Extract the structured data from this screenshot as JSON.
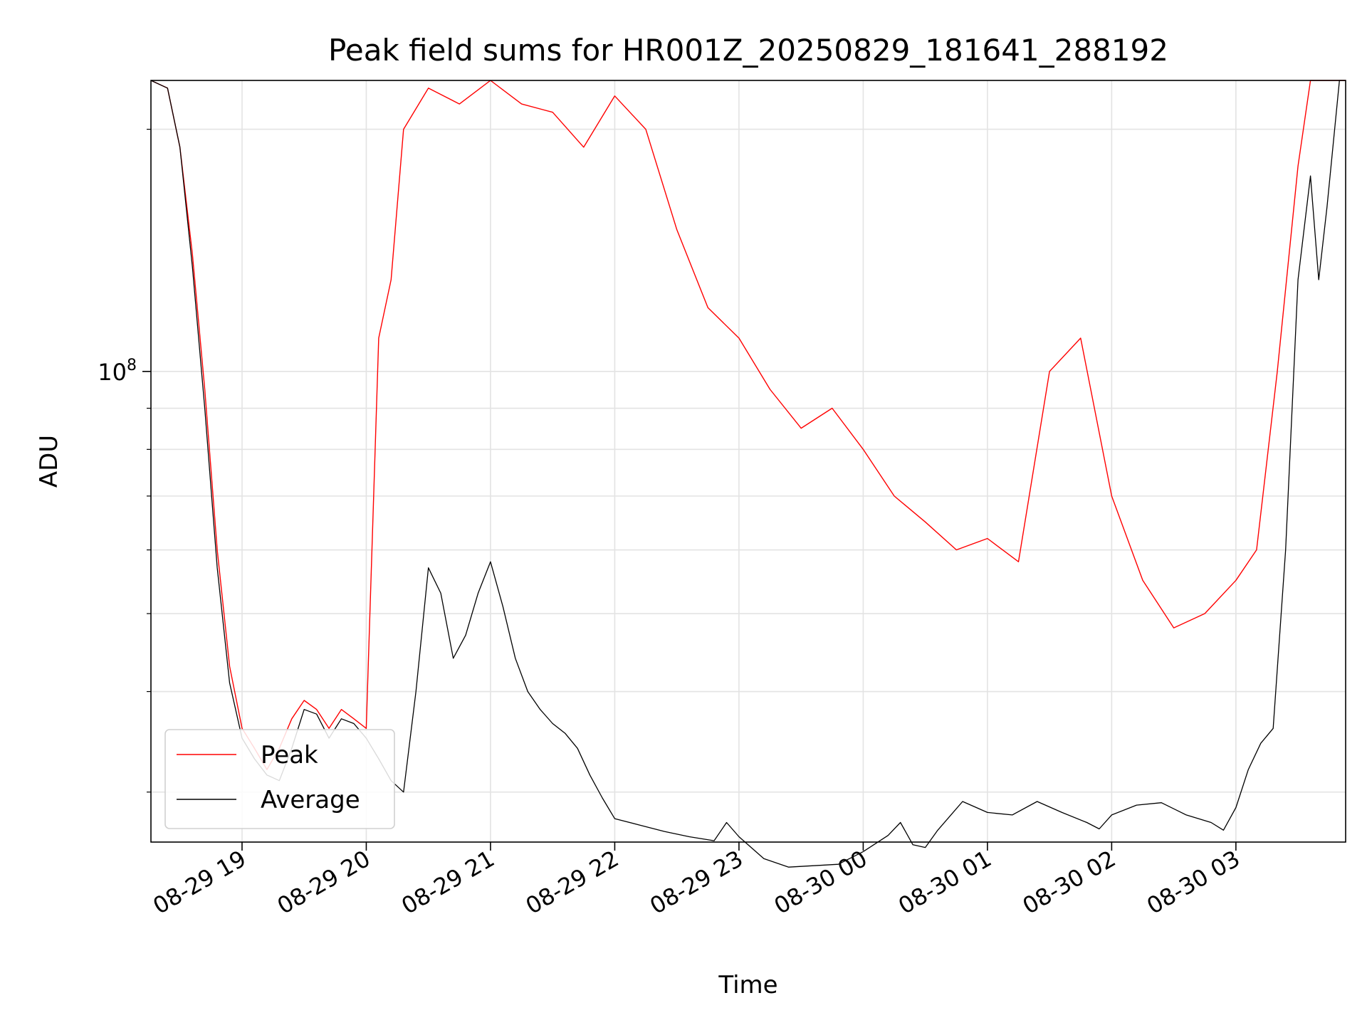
{
  "chart_data": {
    "type": "line",
    "title": "Peak field sums for HR001Z_20250829_181641_288192",
    "xlabel": "Time",
    "ylabel": "ADU",
    "yscale": "log",
    "grid": true,
    "legend_position": "lower-left",
    "xlim": [
      "2025-08-29 18:16",
      "2025-08-30 03:53"
    ],
    "ylim": [
      26000000,
      230000000
    ],
    "x_ticks": [
      {
        "time": "2025-08-29 19:00",
        "label": "08-29 19"
      },
      {
        "time": "2025-08-29 20:00",
        "label": "08-29 20"
      },
      {
        "time": "2025-08-29 21:00",
        "label": "08-29 21"
      },
      {
        "time": "2025-08-29 22:00",
        "label": "08-29 22"
      },
      {
        "time": "2025-08-29 23:00",
        "label": "08-29 23"
      },
      {
        "time": "2025-08-30 00:00",
        "label": "08-30 00"
      },
      {
        "time": "2025-08-30 01:00",
        "label": "08-30 01"
      },
      {
        "time": "2025-08-30 02:00",
        "label": "08-30 02"
      },
      {
        "time": "2025-08-30 03:00",
        "label": "08-30 03"
      }
    ],
    "y_major_ticks": [
      {
        "value": 100000000,
        "base": "10",
        "exponent": "8"
      }
    ],
    "y_minor_ticks": [
      30000000,
      40000000,
      50000000,
      60000000,
      70000000,
      80000000,
      90000000,
      200000000
    ],
    "series": [
      {
        "name": "Peak",
        "color": "#ff0000",
        "points": [
          [
            "2025-08-29 18:16",
            230000000
          ],
          [
            "2025-08-29 18:24",
            225000000
          ],
          [
            "2025-08-29 18:30",
            190000000
          ],
          [
            "2025-08-29 18:36",
            140000000
          ],
          [
            "2025-08-29 18:42",
            95000000
          ],
          [
            "2025-08-29 18:48",
            60000000
          ],
          [
            "2025-08-29 18:54",
            43000000
          ],
          [
            "2025-08-29 19:00",
            36000000
          ],
          [
            "2025-08-29 19:06",
            34000000
          ],
          [
            "2025-08-29 19:12",
            32000000
          ],
          [
            "2025-08-29 19:18",
            34000000
          ],
          [
            "2025-08-29 19:24",
            37000000
          ],
          [
            "2025-08-29 19:30",
            39000000
          ],
          [
            "2025-08-29 19:36",
            38000000
          ],
          [
            "2025-08-29 19:42",
            36000000
          ],
          [
            "2025-08-29 19:48",
            38000000
          ],
          [
            "2025-08-29 19:54",
            37000000
          ],
          [
            "2025-08-29 20:00",
            36000000
          ],
          [
            "2025-08-29 20:06",
            110000000
          ],
          [
            "2025-08-29 20:12",
            130000000
          ],
          [
            "2025-08-29 20:18",
            200000000
          ],
          [
            "2025-08-29 20:30",
            225000000
          ],
          [
            "2025-08-29 20:45",
            215000000
          ],
          [
            "2025-08-29 21:00",
            230000000
          ],
          [
            "2025-08-29 21:15",
            215000000
          ],
          [
            "2025-08-29 21:30",
            210000000
          ],
          [
            "2025-08-29 21:45",
            190000000
          ],
          [
            "2025-08-29 22:00",
            220000000
          ],
          [
            "2025-08-29 22:15",
            200000000
          ],
          [
            "2025-08-29 22:30",
            150000000
          ],
          [
            "2025-08-29 22:45",
            120000000
          ],
          [
            "2025-08-29 23:00",
            110000000
          ],
          [
            "2025-08-29 23:15",
            95000000
          ],
          [
            "2025-08-29 23:30",
            85000000
          ],
          [
            "2025-08-29 23:45",
            90000000
          ],
          [
            "2025-08-30 00:00",
            80000000
          ],
          [
            "2025-08-30 00:15",
            70000000
          ],
          [
            "2025-08-30 00:30",
            65000000
          ],
          [
            "2025-08-30 00:45",
            60000000
          ],
          [
            "2025-08-30 01:00",
            62000000
          ],
          [
            "2025-08-30 01:15",
            58000000
          ],
          [
            "2025-08-30 01:30",
            100000000
          ],
          [
            "2025-08-30 01:45",
            110000000
          ],
          [
            "2025-08-30 02:00",
            70000000
          ],
          [
            "2025-08-30 02:15",
            55000000
          ],
          [
            "2025-08-30 02:30",
            48000000
          ],
          [
            "2025-08-30 02:45",
            50000000
          ],
          [
            "2025-08-30 03:00",
            55000000
          ],
          [
            "2025-08-30 03:10",
            60000000
          ],
          [
            "2025-08-30 03:20",
            100000000
          ],
          [
            "2025-08-30 03:30",
            180000000
          ],
          [
            "2025-08-30 03:36",
            230000000
          ],
          [
            "2025-08-30 03:45",
            230000000
          ],
          [
            "2025-08-30 03:53",
            230000000
          ]
        ]
      },
      {
        "name": "Average",
        "color": "#000000",
        "points": [
          [
            "2025-08-29 18:16",
            230000000
          ],
          [
            "2025-08-29 18:24",
            225000000
          ],
          [
            "2025-08-29 18:30",
            190000000
          ],
          [
            "2025-08-29 18:36",
            135000000
          ],
          [
            "2025-08-29 18:42",
            90000000
          ],
          [
            "2025-08-29 18:48",
            57000000
          ],
          [
            "2025-08-29 18:54",
            41000000
          ],
          [
            "2025-08-29 19:00",
            35000000
          ],
          [
            "2025-08-29 19:06",
            33000000
          ],
          [
            "2025-08-29 19:12",
            31500000
          ],
          [
            "2025-08-29 19:18",
            31000000
          ],
          [
            "2025-08-29 19:24",
            34000000
          ],
          [
            "2025-08-29 19:30",
            38000000
          ],
          [
            "2025-08-29 19:36",
            37500000
          ],
          [
            "2025-08-29 19:42",
            35000000
          ],
          [
            "2025-08-29 19:48",
            37000000
          ],
          [
            "2025-08-29 19:54",
            36500000
          ],
          [
            "2025-08-29 20:00",
            35000000
          ],
          [
            "2025-08-29 20:06",
            33000000
          ],
          [
            "2025-08-29 20:12",
            31000000
          ],
          [
            "2025-08-29 20:18",
            30000000
          ],
          [
            "2025-08-29 20:24",
            40000000
          ],
          [
            "2025-08-29 20:30",
            57000000
          ],
          [
            "2025-08-29 20:36",
            53000000
          ],
          [
            "2025-08-29 20:42",
            44000000
          ],
          [
            "2025-08-29 20:48",
            47000000
          ],
          [
            "2025-08-29 20:54",
            53000000
          ],
          [
            "2025-08-29 21:00",
            58000000
          ],
          [
            "2025-08-29 21:06",
            51000000
          ],
          [
            "2025-08-29 21:12",
            44000000
          ],
          [
            "2025-08-29 21:18",
            40000000
          ],
          [
            "2025-08-29 21:24",
            38000000
          ],
          [
            "2025-08-29 21:30",
            36500000
          ],
          [
            "2025-08-29 21:36",
            35500000
          ],
          [
            "2025-08-29 21:42",
            34000000
          ],
          [
            "2025-08-29 21:48",
            31500000
          ],
          [
            "2025-08-29 21:54",
            29500000
          ],
          [
            "2025-08-29 22:00",
            27800000
          ],
          [
            "2025-08-29 22:12",
            27300000
          ],
          [
            "2025-08-29 22:24",
            26800000
          ],
          [
            "2025-08-29 22:36",
            26400000
          ],
          [
            "2025-08-29 22:48",
            26100000
          ],
          [
            "2025-08-29 22:54",
            27500000
          ],
          [
            "2025-08-29 23:00",
            26400000
          ],
          [
            "2025-08-29 23:12",
            24800000
          ],
          [
            "2025-08-29 23:24",
            24200000
          ],
          [
            "2025-08-29 23:36",
            24300000
          ],
          [
            "2025-08-29 23:48",
            24400000
          ],
          [
            "2025-08-30 00:00",
            25300000
          ],
          [
            "2025-08-30 00:12",
            26500000
          ],
          [
            "2025-08-30 00:18",
            27500000
          ],
          [
            "2025-08-30 00:24",
            25800000
          ],
          [
            "2025-08-30 00:30",
            25600000
          ],
          [
            "2025-08-30 00:36",
            26900000
          ],
          [
            "2025-08-30 00:48",
            29200000
          ],
          [
            "2025-08-30 01:00",
            28300000
          ],
          [
            "2025-08-30 01:12",
            28100000
          ],
          [
            "2025-08-30 01:24",
            29200000
          ],
          [
            "2025-08-30 01:36",
            28300000
          ],
          [
            "2025-08-30 01:48",
            27500000
          ],
          [
            "2025-08-30 01:54",
            27000000
          ],
          [
            "2025-08-30 02:00",
            28100000
          ],
          [
            "2025-08-30 02:12",
            28900000
          ],
          [
            "2025-08-30 02:24",
            29100000
          ],
          [
            "2025-08-30 02:36",
            28100000
          ],
          [
            "2025-08-30 02:48",
            27500000
          ],
          [
            "2025-08-30 02:54",
            26900000
          ],
          [
            "2025-08-30 03:00",
            28700000
          ],
          [
            "2025-08-30 03:06",
            32000000
          ],
          [
            "2025-08-30 03:12",
            34500000
          ],
          [
            "2025-08-30 03:18",
            36000000
          ],
          [
            "2025-08-30 03:24",
            60000000
          ],
          [
            "2025-08-30 03:30",
            130000000
          ],
          [
            "2025-08-30 03:36",
            175000000
          ],
          [
            "2025-08-30 03:40",
            130000000
          ],
          [
            "2025-08-30 03:44",
            160000000
          ],
          [
            "2025-08-30 03:50",
            230000000
          ],
          [
            "2025-08-30 03:53",
            230000000
          ]
        ]
      }
    ]
  }
}
